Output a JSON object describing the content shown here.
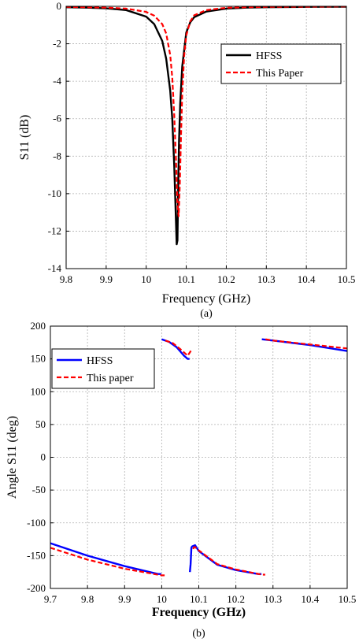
{
  "chart_data": [
    {
      "type": "line",
      "xlabel": "Frequency (GHz)",
      "ylabel": "S11 (dB)",
      "subcaption": "(a)",
      "xlim": [
        9.8,
        10.5
      ],
      "ylim": [
        -14,
        0
      ],
      "xticks": [
        "9.8",
        "9.9",
        "10",
        "10.1",
        "10.2",
        "10.3",
        "10.4",
        "10.5"
      ],
      "yticks": [
        "0",
        "-2",
        "-4",
        "-6",
        "-8",
        "-10",
        "-12",
        "-14"
      ],
      "grid": true,
      "legend": {
        "placement": "top-right"
      },
      "series": [
        {
          "name": "HFSS",
          "color": "#000000",
          "style": "solid",
          "x": [
            9.8,
            9.85,
            9.9,
            9.95,
            10.0,
            10.02,
            10.04,
            10.05,
            10.06,
            10.065,
            10.07,
            10.073,
            10.076,
            10.078,
            10.08,
            10.082,
            10.085,
            10.09,
            10.1,
            10.11,
            10.12,
            10.15,
            10.2,
            10.25,
            10.3,
            10.4,
            10.5
          ],
          "y": [
            -0.05,
            -0.07,
            -0.11,
            -0.2,
            -0.55,
            -0.95,
            -1.85,
            -2.8,
            -4.5,
            -6.0,
            -8.5,
            -10.5,
            -12.7,
            -12.5,
            -9.5,
            -7.2,
            -5.2,
            -3.2,
            -1.4,
            -0.85,
            -0.58,
            -0.28,
            -0.12,
            -0.07,
            -0.05,
            -0.03,
            -0.02
          ]
        },
        {
          "name": "This Paper",
          "color": "#ff0000",
          "style": "dashed",
          "x": [
            9.8,
            9.85,
            9.9,
            9.95,
            10.0,
            10.02,
            10.04,
            10.05,
            10.06,
            10.065,
            10.07,
            10.075,
            10.078,
            10.081,
            10.084,
            10.087,
            10.09,
            10.095,
            10.1,
            10.11,
            10.12,
            10.15,
            10.2,
            10.25,
            10.3,
            10.4,
            10.5
          ],
          "y": [
            -0.03,
            -0.05,
            -0.07,
            -0.12,
            -0.3,
            -0.5,
            -0.95,
            -1.45,
            -2.6,
            -3.8,
            -5.8,
            -8.6,
            -10.6,
            -11.2,
            -9.5,
            -6.8,
            -4.6,
            -2.6,
            -1.55,
            -0.8,
            -0.48,
            -0.2,
            -0.08,
            -0.05,
            -0.03,
            -0.02,
            -0.01
          ]
        }
      ]
    },
    {
      "type": "line",
      "xlabel": "Frequency (GHz)",
      "ylabel": "Angle  S11 (deg)",
      "subcaption": "(b)",
      "xlim": [
        9.7,
        10.5
      ],
      "ylim": [
        -200,
        200
      ],
      "xticks": [
        "9.7",
        "9.8",
        "9.9",
        "10",
        "10.1",
        "10.2",
        "10.3",
        "10.4",
        "10.5"
      ],
      "yticks": [
        "200",
        "150",
        "100",
        "50",
        "0",
        "-50",
        "-100",
        "-150",
        "-200"
      ],
      "grid": true,
      "legend": {
        "placement": "top-left"
      },
      "series": [
        {
          "name": "HFSS",
          "color": "#0000ff",
          "style": "solid",
          "x": [
            9.7,
            9.8,
            9.9,
            9.99,
            9.999,
            10.0,
            10.02,
            10.04,
            10.06,
            10.07,
            10.075,
            10.076,
            10.078,
            10.08,
            10.082,
            10.09,
            10.1,
            10.15,
            10.2,
            10.26,
            10.269,
            10.27,
            10.3,
            10.4,
            10.5
          ],
          "y": [
            -131,
            -150,
            -166,
            -178,
            -178,
            180,
            176,
            168,
            155,
            150,
            150,
            -175,
            -163,
            -138,
            -136,
            -134,
            -143,
            -164,
            -172,
            -178,
            -178,
            180,
            178,
            171,
            162
          ],
          "breaks_after": [
            4,
            10,
            20
          ]
        },
        {
          "name": "This paper",
          "color": "#ff0000",
          "style": "dashed",
          "x": [
            9.7,
            9.8,
            9.9,
            10.0,
            10.008,
            10.01,
            10.03,
            10.05,
            10.07,
            10.082,
            10.085,
            10.087,
            10.09,
            10.1,
            10.15,
            10.2,
            10.27,
            10.279,
            10.28,
            10.3,
            10.4,
            10.5
          ],
          "y": [
            -138,
            -156,
            -170,
            -180,
            -180,
            178,
            174,
            165,
            155,
            165,
            -140,
            -137,
            -137,
            -142,
            -163,
            -171,
            -179,
            -179,
            180,
            178,
            172,
            166
          ],
          "breaks_after": [
            4,
            9,
            17
          ]
        }
      ]
    }
  ]
}
